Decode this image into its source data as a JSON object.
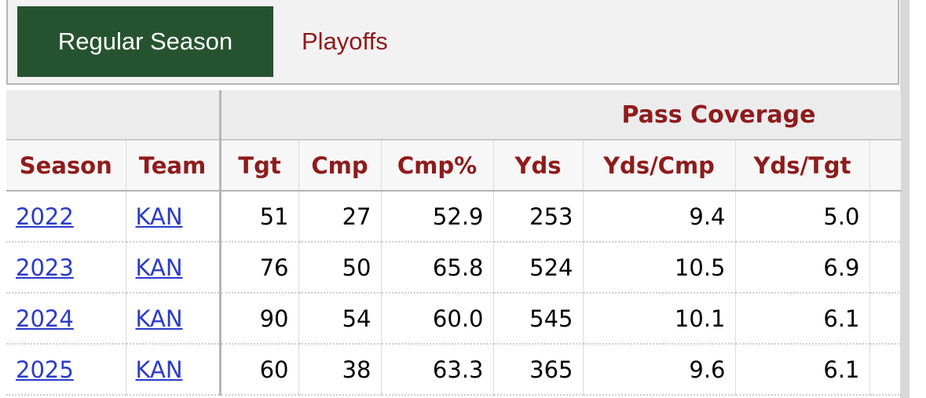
{
  "tabs": [
    "Regular Season",
    "Playoffs"
  ],
  "table": {
    "group_header": "Pass Coverage",
    "columns": [
      "Season",
      "Team",
      "Tgt",
      "Cmp",
      "Cmp%",
      "Yds",
      "Yds/Cmp",
      "Yds/Tgt"
    ],
    "rows": [
      [
        "2022",
        "KAN",
        "51",
        "27",
        "52.9",
        "253",
        "9.4",
        "5.0"
      ],
      [
        "2023",
        "KAN",
        "76",
        "50",
        "65.8",
        "524",
        "10.5",
        "6.9"
      ],
      [
        "2024",
        "KAN",
        "90",
        "54",
        "60.0",
        "545",
        "10.1",
        "6.1"
      ],
      [
        "2025",
        "KAN",
        "60",
        "38",
        "63.3",
        "365",
        "9.6",
        "6.1"
      ]
    ]
  }
}
